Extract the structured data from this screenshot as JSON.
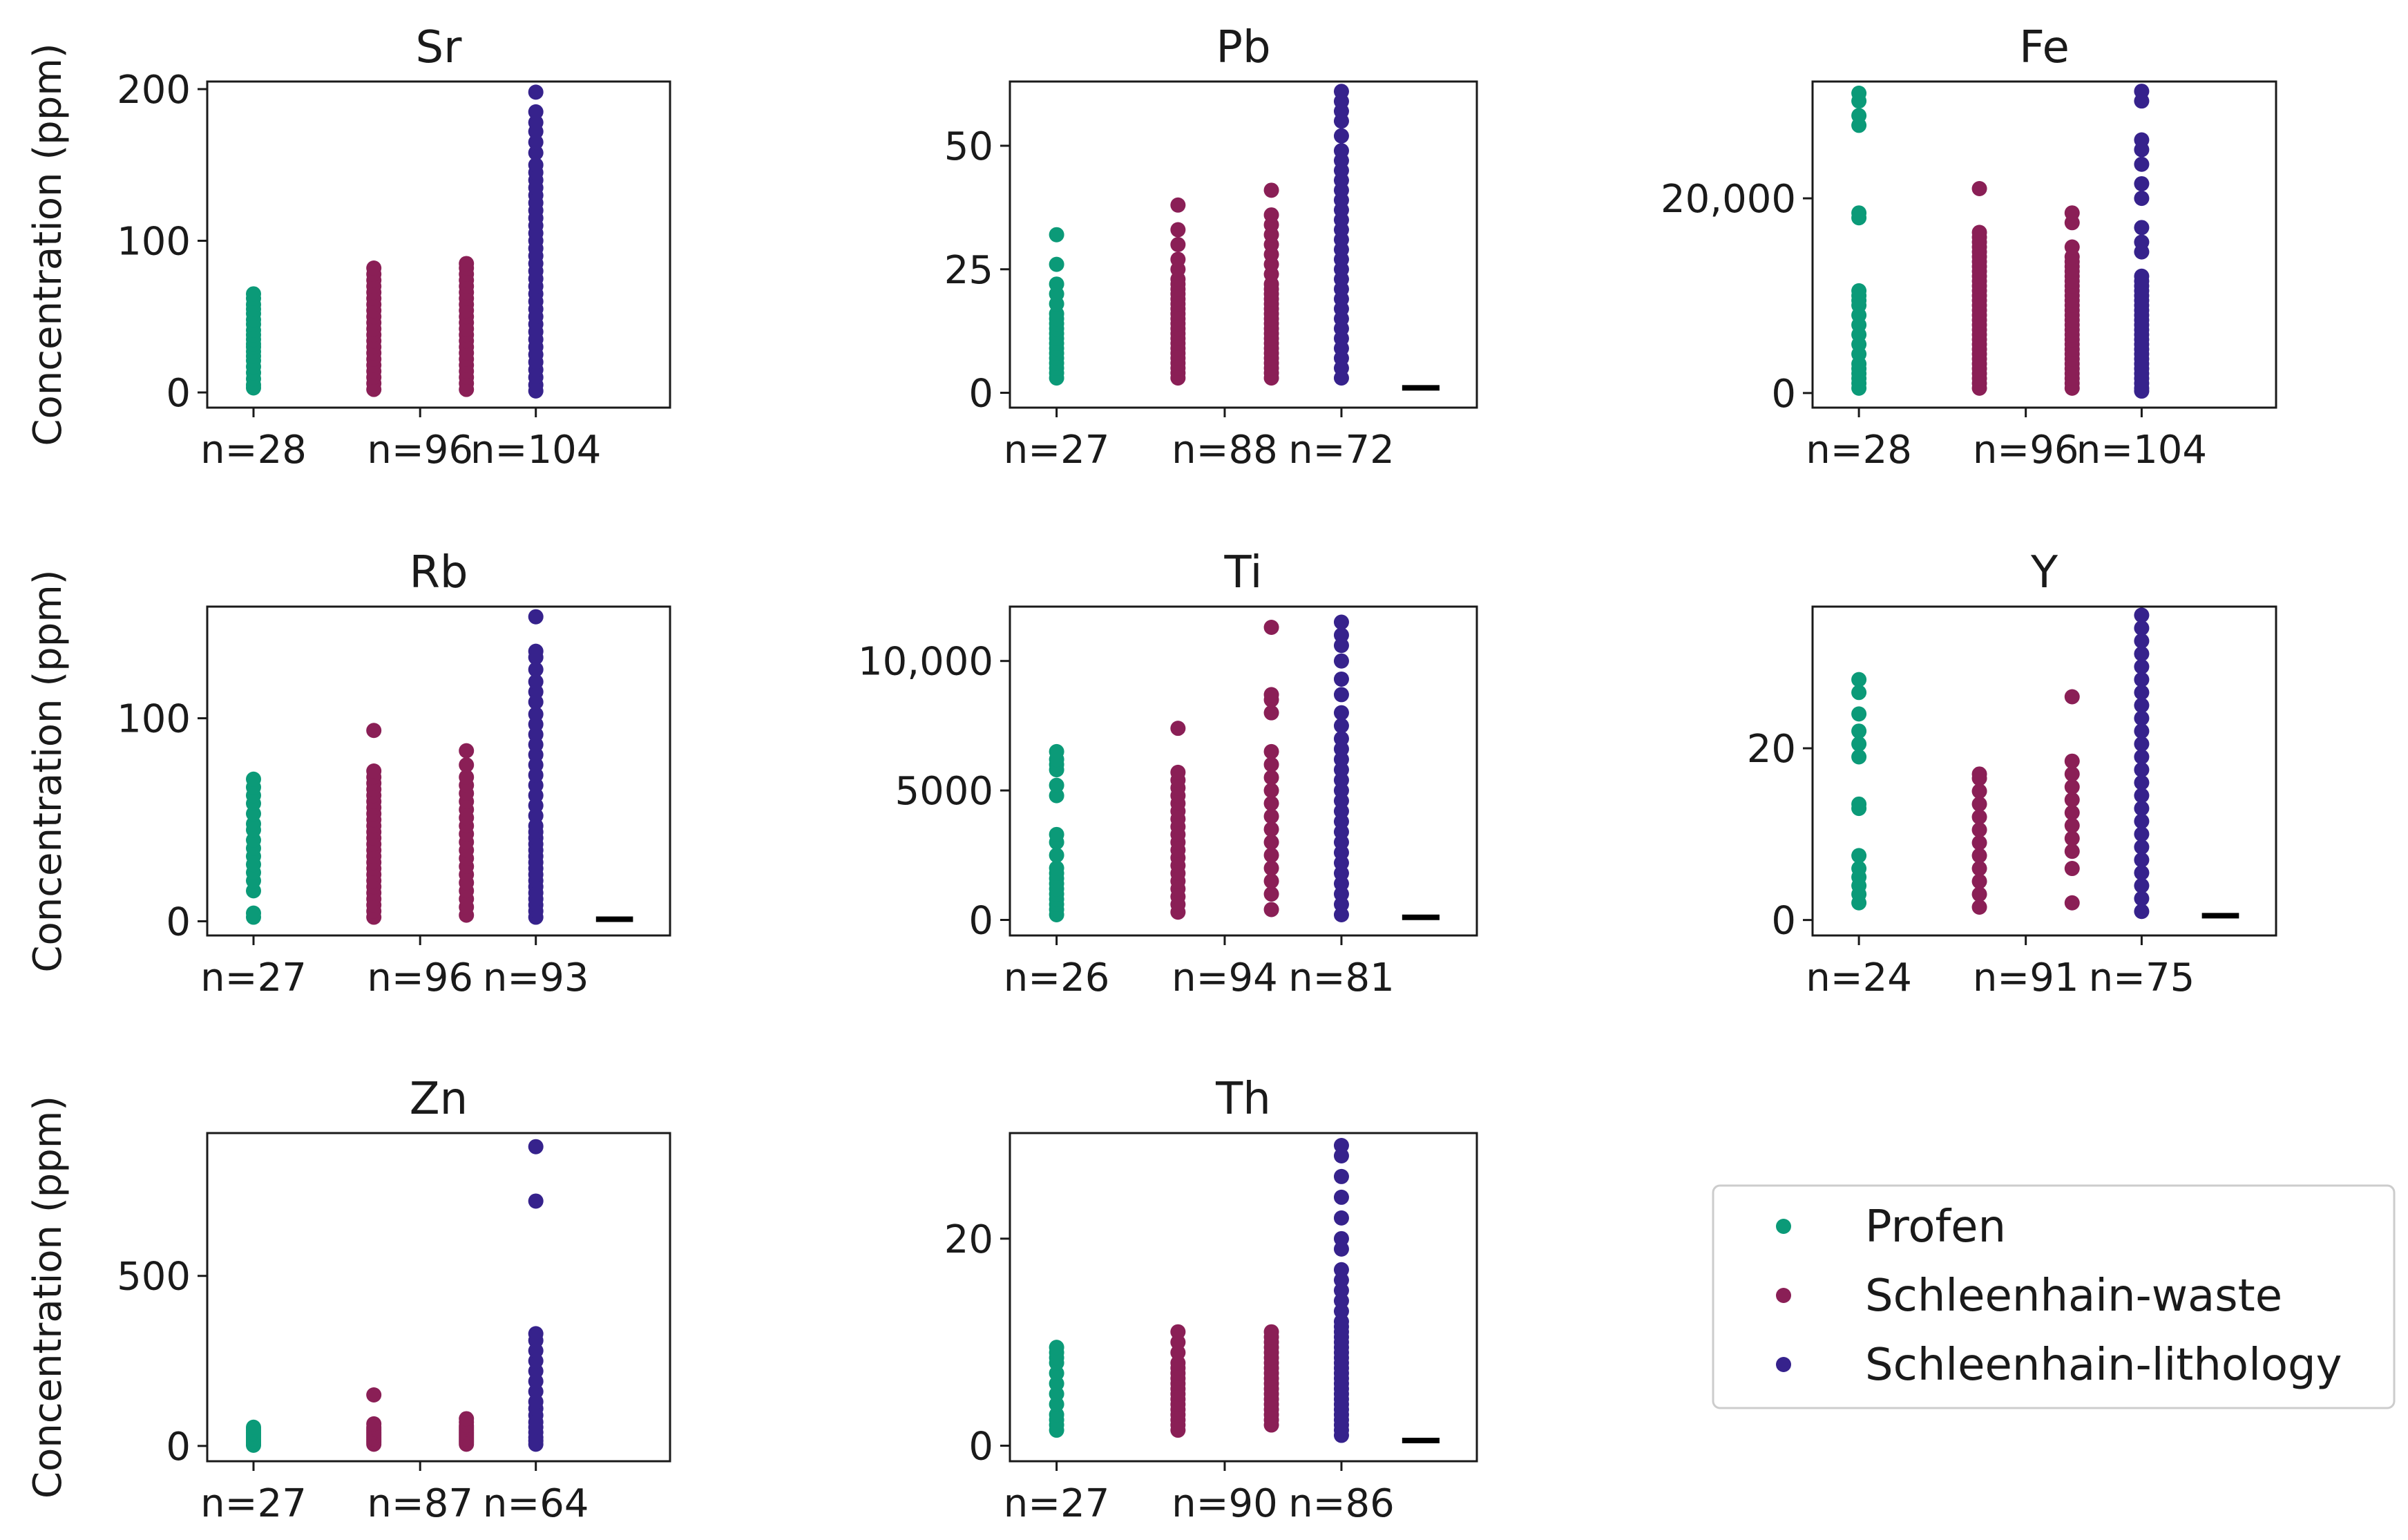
{
  "colors": {
    "Profen": "#0b9a78",
    "Schleenhain-waste": "#8a1f56",
    "Schleenhain-lithology": "#36228c",
    "axes": "#1a1a1a"
  },
  "legend": {
    "placement": "bottom-right",
    "items": [
      "Profen",
      "Schleenhain-waste",
      "Schleenhain-lithology"
    ]
  },
  "ylabel": "Concentration (ppm)",
  "chart_data": [
    {
      "type": "scatter",
      "title": "Sr",
      "ylabel": "Concentration (ppm)",
      "ylim": [
        -10,
        205
      ],
      "yticks": [
        0,
        100,
        200
      ],
      "ytick_labels": [
        "0",
        "100",
        "200"
      ],
      "detection_limit": null,
      "series": [
        {
          "name": "Profen",
          "label": "n=28",
          "values": [
            3,
            5,
            9,
            13,
            17,
            21,
            24,
            27,
            30,
            32,
            35,
            38,
            41,
            45,
            48,
            52,
            55,
            58,
            62,
            65
          ]
        },
        {
          "name": "Schleenhain-waste",
          "label": "n=96",
          "values": [
            2,
            6,
            10,
            14,
            18,
            22,
            26,
            30,
            34,
            38,
            42,
            46,
            50,
            54,
            58,
            62,
            66,
            70,
            74,
            78,
            82
          ]
        },
        {
          "name": "Schleenhain-waste",
          "label": "n=96",
          "values": [
            2,
            6,
            10,
            14,
            18,
            22,
            26,
            30,
            34,
            38,
            42,
            46,
            50,
            54,
            58,
            62,
            66,
            70,
            74,
            78,
            82,
            85
          ]
        },
        {
          "name": "Schleenhain-lithology",
          "label": "n=104",
          "values": [
            1,
            5,
            10,
            15,
            20,
            25,
            30,
            35,
            40,
            45,
            50,
            55,
            60,
            65,
            70,
            75,
            80,
            85,
            90,
            95,
            100,
            105,
            110,
            115,
            120,
            125,
            130,
            135,
            140,
            145,
            150,
            158,
            165,
            172,
            178,
            185,
            198
          ]
        }
      ]
    },
    {
      "type": "scatter",
      "title": "Pb",
      "ylabel": "",
      "ylim": [
        -3,
        63
      ],
      "yticks": [
        0,
        25,
        50
      ],
      "ytick_labels": [
        "0",
        "25",
        "50"
      ],
      "detection_limit": 1,
      "series": [
        {
          "name": "Profen",
          "label": "n=27",
          "values": [
            3,
            4,
            5,
            6,
            7,
            8,
            9,
            10,
            11,
            12,
            13,
            14,
            15,
            16,
            18,
            20,
            22,
            26,
            32
          ]
        },
        {
          "name": "Schleenhain-waste",
          "label": "n=88",
          "values": [
            3,
            4,
            5,
            6,
            7,
            8,
            9,
            10,
            11,
            12,
            13,
            14,
            15,
            16,
            17,
            18,
            19,
            20,
            21,
            22,
            23,
            25,
            27,
            30,
            33,
            38
          ]
        },
        {
          "name": "Schleenhain-waste",
          "label": "n=88",
          "values": [
            3,
            4,
            5,
            6,
            7,
            8,
            9,
            10,
            11,
            12,
            13,
            14,
            15,
            16,
            17,
            18,
            19,
            20,
            21,
            22,
            24,
            26,
            28,
            30,
            32,
            34,
            36,
            41
          ]
        },
        {
          "name": "Schleenhain-lithology",
          "label": "n=72",
          "values": [
            3,
            5,
            7,
            9,
            11,
            13,
            15,
            17,
            19,
            21,
            23,
            25,
            27,
            29,
            31,
            33,
            35,
            37,
            39,
            41,
            43,
            45,
            47,
            49,
            52,
            55,
            57,
            59,
            61
          ]
        }
      ]
    },
    {
      "type": "scatter",
      "title": "Fe",
      "ylabel": "",
      "ylim": [
        -1500,
        32000
      ],
      "yticks": [
        0,
        20000
      ],
      "ytick_labels": [
        "0",
        "20,000"
      ],
      "detection_limit": null,
      "series": [
        {
          "name": "Profen",
          "label": "n=28",
          "values": [
            500,
            1000,
            1500,
            2000,
            2500,
            3000,
            4000,
            5000,
            6000,
            7000,
            8000,
            9000,
            9500,
            10000,
            10500,
            18000,
            18500,
            27500,
            28500,
            30000,
            30800
          ]
        },
        {
          "name": "Schleenhain-waste",
          "label": "n=96",
          "values": [
            500,
            1000,
            1500,
            2000,
            2500,
            3000,
            3500,
            4000,
            4500,
            5000,
            5500,
            6000,
            6500,
            7000,
            7500,
            8000,
            8500,
            9000,
            9500,
            10000,
            10500,
            11000,
            11500,
            12000,
            12500,
            13000,
            13500,
            14000,
            14500,
            15000,
            15500,
            16000,
            16500,
            21000
          ]
        },
        {
          "name": "Schleenhain-waste",
          "label": "n=96",
          "values": [
            500,
            1000,
            1500,
            2000,
            2500,
            3000,
            3500,
            4000,
            4500,
            5000,
            5500,
            6000,
            6500,
            7000,
            7500,
            8000,
            8500,
            9000,
            9500,
            10000,
            10500,
            11000,
            11500,
            12000,
            12500,
            13000,
            13500,
            14000,
            15000,
            17500,
            18500
          ]
        },
        {
          "name": "Schleenhain-lithology",
          "label": "n=104",
          "values": [
            200,
            500,
            1000,
            1500,
            2000,
            2500,
            3000,
            3500,
            4000,
            4500,
            5000,
            5500,
            6000,
            6500,
            7000,
            7500,
            8000,
            8500,
            9000,
            9500,
            10000,
            10500,
            11000,
            11500,
            12000,
            14500,
            15500,
            17000,
            20000,
            21500,
            23500,
            25000,
            26000,
            30000,
            31000
          ]
        }
      ]
    },
    {
      "type": "scatter",
      "title": "Rb",
      "ylabel": "Concentration (ppm)",
      "ylim": [
        -7,
        155
      ],
      "yticks": [
        0,
        100
      ],
      "ytick_labels": [
        "0",
        "100"
      ],
      "detection_limit": 1,
      "series": [
        {
          "name": "Profen",
          "label": "n=27",
          "values": [
            2,
            4,
            15,
            20,
            24,
            28,
            32,
            36,
            40,
            45,
            48,
            53,
            58,
            62,
            66,
            70
          ]
        },
        {
          "name": "Schleenhain-waste",
          "label": "n=96",
          "values": [
            2,
            5,
            8,
            11,
            14,
            17,
            20,
            23,
            26,
            29,
            32,
            35,
            38,
            41,
            44,
            47,
            50,
            53,
            56,
            59,
            62,
            65,
            68,
            71,
            74,
            94
          ]
        },
        {
          "name": "Schleenhain-waste",
          "label": "n=96",
          "values": [
            3,
            7,
            11,
            15,
            19,
            23,
            27,
            31,
            35,
            39,
            43,
            47,
            51,
            55,
            59,
            63,
            67,
            71,
            77,
            84
          ]
        },
        {
          "name": "Schleenhain-lithology",
          "label": "n=93",
          "values": [
            2,
            5,
            8,
            11,
            14,
            17,
            20,
            23,
            26,
            29,
            32,
            35,
            38,
            41,
            44,
            47,
            52,
            57,
            62,
            67,
            72,
            77,
            82,
            87,
            92,
            97,
            102,
            108,
            113,
            118,
            124,
            130,
            133,
            150
          ]
        }
      ]
    },
    {
      "type": "scatter",
      "title": "Ti",
      "ylabel": "",
      "ylim": [
        -600,
        12100
      ],
      "yticks": [
        0,
        5000,
        10000
      ],
      "ytick_labels": [
        "0",
        "5000",
        "10,000"
      ],
      "detection_limit": 100,
      "series": [
        {
          "name": "Profen",
          "label": "n=26",
          "values": [
            200,
            400,
            600,
            800,
            1000,
            1200,
            1400,
            1600,
            1800,
            2000,
            2500,
            3000,
            3300,
            4800,
            5200,
            5800,
            6000,
            6200,
            6500
          ]
        },
        {
          "name": "Schleenhain-waste",
          "label": "n=94",
          "values": [
            300,
            600,
            900,
            1200,
            1500,
            1800,
            2100,
            2400,
            2700,
            3000,
            3300,
            3600,
            3900,
            4200,
            4500,
            4800,
            5100,
            5400,
            5700,
            7400
          ]
        },
        {
          "name": "Schleenhain-waste",
          "label": "n=94",
          "values": [
            400,
            1000,
            1500,
            2000,
            2500,
            3000,
            3500,
            4000,
            4500,
            5000,
            5500,
            6000,
            6500,
            8000,
            8500,
            8700,
            11300
          ]
        },
        {
          "name": "Schleenhain-lithology",
          "label": "n=81",
          "values": [
            200,
            600,
            1000,
            1400,
            1800,
            2200,
            2600,
            3000,
            3400,
            3800,
            4200,
            4600,
            5000,
            5400,
            5800,
            6200,
            6600,
            7000,
            7500,
            8000,
            8700,
            9300,
            10000,
            10600,
            11000,
            11500
          ]
        }
      ]
    },
    {
      "type": "scatter",
      "title": "Y",
      "ylabel": "",
      "ylim": [
        -1.8,
        36.5
      ],
      "yticks": [
        0,
        20
      ],
      "ytick_labels": [
        "0",
        "20"
      ],
      "detection_limit": 0.5,
      "series": [
        {
          "name": "Profen",
          "label": "n=24",
          "values": [
            2,
            3,
            4,
            5,
            6,
            7.5,
            13,
            13.5,
            19,
            20.5,
            22,
            24,
            26.5,
            28
          ]
        },
        {
          "name": "Schleenhain-waste",
          "label": "n=91",
          "values": [
            1.5,
            3,
            4.5,
            6,
            7.5,
            9,
            10.5,
            12,
            13.5,
            15,
            16.5,
            17
          ]
        },
        {
          "name": "Schleenhain-waste",
          "label": "n=91",
          "values": [
            2,
            6,
            8,
            9.5,
            11,
            12.5,
            14,
            15.5,
            17,
            18.5,
            26
          ]
        },
        {
          "name": "Schleenhain-lithology",
          "label": "n=75",
          "values": [
            1,
            2.5,
            4,
            5.5,
            7,
            8.5,
            10,
            11.5,
            13,
            14.5,
            16,
            17.5,
            19,
            20.5,
            22,
            23.5,
            25,
            26.5,
            28,
            29.5,
            31,
            32.5,
            34,
            35.5
          ]
        }
      ]
    },
    {
      "type": "scatter",
      "title": "Zn",
      "ylabel": "Concentration (ppm)",
      "ylim": [
        -45,
        920
      ],
      "yticks": [
        0,
        500
      ],
      "ytick_labels": [
        "0",
        "500"
      ],
      "detection_limit": null,
      "series": [
        {
          "name": "Profen",
          "label": "n=27",
          "values": [
            2,
            5,
            10,
            15,
            20,
            25,
            30,
            35,
            40,
            45,
            50,
            55
          ]
        },
        {
          "name": "Schleenhain-waste",
          "label": "n=87",
          "values": [
            5,
            10,
            15,
            20,
            25,
            30,
            35,
            40,
            45,
            50,
            55,
            65,
            150
          ]
        },
        {
          "name": "Schleenhain-waste",
          "label": "n=87",
          "values": [
            5,
            10,
            15,
            20,
            25,
            30,
            35,
            40,
            45,
            50,
            55,
            60,
            70,
            80
          ]
        },
        {
          "name": "Schleenhain-lithology",
          "label": "n=64",
          "values": [
            5,
            15,
            25,
            40,
            55,
            70,
            90,
            110,
            130,
            160,
            190,
            220,
            250,
            280,
            310,
            330,
            720,
            880
          ]
        }
      ]
    },
    {
      "type": "scatter",
      "title": "Th",
      "ylabel": "",
      "ylim": [
        -1.5,
        30.2
      ],
      "yticks": [
        0,
        20
      ],
      "ytick_labels": [
        "0",
        "20"
      ],
      "detection_limit": 0.5,
      "series": [
        {
          "name": "Profen",
          "label": "n=27",
          "values": [
            1.5,
            2,
            2.5,
            3,
            4,
            5,
            6,
            7,
            8,
            8.5,
            9,
            9.5
          ]
        },
        {
          "name": "Schleenhain-waste",
          "label": "n=90",
          "values": [
            1.5,
            2,
            2.5,
            3,
            3.5,
            4,
            4.5,
            5,
            5.5,
            6,
            6.5,
            7,
            7.5,
            8,
            9,
            10,
            11
          ]
        },
        {
          "name": "Schleenhain-waste",
          "label": "n=90",
          "values": [
            2,
            2.5,
            3,
            3.5,
            4,
            4.5,
            5,
            5.5,
            6,
            6.5,
            7,
            7.5,
            8,
            8.5,
            9,
            9.5,
            10,
            10.5,
            11
          ]
        },
        {
          "name": "Schleenhain-lithology",
          "label": "n=86",
          "values": [
            1,
            1.5,
            2,
            2.5,
            3,
            3.5,
            4,
            4.5,
            5,
            5.5,
            6,
            6.5,
            7,
            7.5,
            8,
            8.5,
            9,
            9.5,
            10,
            10.5,
            11,
            11.5,
            12,
            13,
            14,
            15,
            16,
            17,
            19,
            20,
            22,
            24,
            26,
            28,
            29
          ]
        }
      ]
    }
  ]
}
